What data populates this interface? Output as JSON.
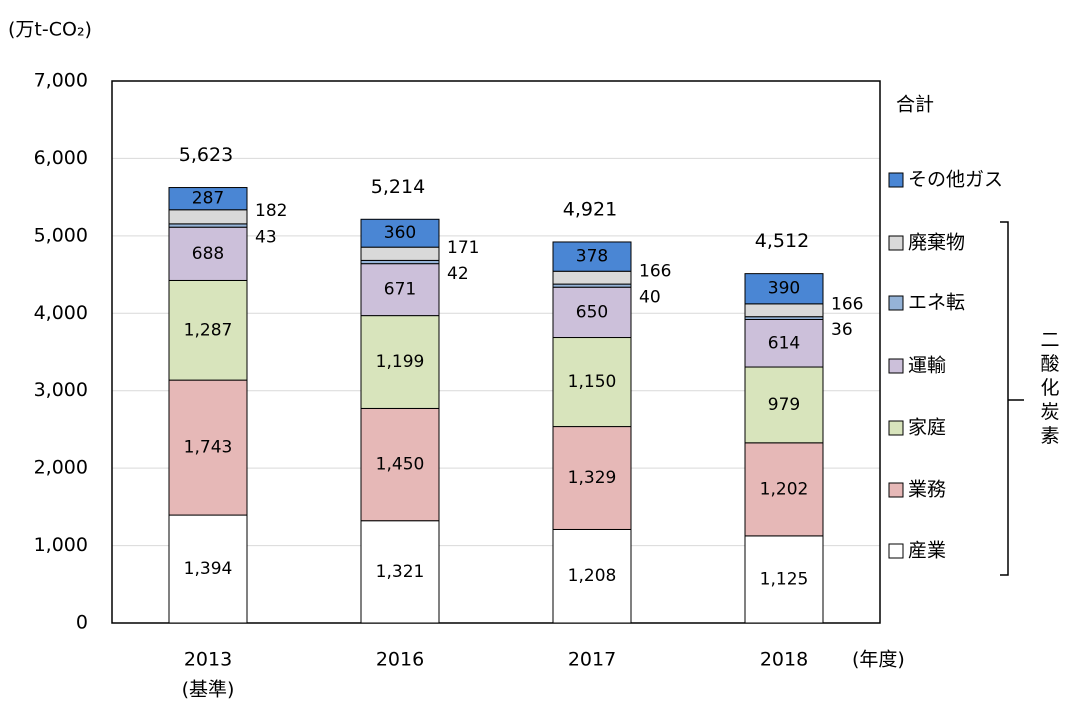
{
  "chart_data": {
    "type": "stacked_bar",
    "y_unit_label": "(万t-CO₂)",
    "x_unit_label": "(年度)",
    "base_year_note": "(基準)",
    "categories": [
      "2013",
      "2016",
      "2017",
      "2018"
    ],
    "ylim": [
      0,
      7000
    ],
    "yticks": [
      0,
      {
        "value": 1000,
        "label": "1,000"
      },
      {
        "value": 2000,
        "label": "2,000"
      },
      {
        "value": 3000,
        "label": "3,000"
      },
      {
        "value": 4000,
        "label": "4,000"
      },
      {
        "value": 5000,
        "label": "5,000"
      },
      {
        "value": 6000,
        "label": "6,000"
      },
      {
        "value": 7000,
        "label": "7,000"
      }
    ],
    "grid": true,
    "series": [
      {
        "name": "産業",
        "color": "#ffffff",
        "values": [
          1394,
          1321,
          1208,
          1125
        ],
        "value_labels": [
          "1,394",
          "1,321",
          "1,208",
          "1,125"
        ]
      },
      {
        "name": "業務",
        "color": "#e6b8b7",
        "values": [
          1743,
          1450,
          1329,
          1202
        ],
        "value_labels": [
          "1,743",
          "1,450",
          "1,329",
          "1,202"
        ]
      },
      {
        "name": "家庭",
        "color": "#d8e4bc",
        "values": [
          1287,
          1199,
          1150,
          979
        ],
        "value_labels": [
          "1,287",
          "1,199",
          "1,150",
          "979"
        ]
      },
      {
        "name": "運輸",
        "color": "#ccc0da",
        "values": [
          688,
          671,
          650,
          614
        ]
      },
      {
        "name": "エネ転",
        "color": "#95b3d7",
        "values": [
          43,
          42,
          40,
          36
        ]
      },
      {
        "name": "廃棄物",
        "color": "#d9d9d9",
        "values": [
          182,
          171,
          166,
          166
        ]
      },
      {
        "name": "その他ガス",
        "color": "#4a86d4",
        "values": [
          287,
          360,
          378,
          390
        ]
      }
    ],
    "totals": {
      "name": "合計",
      "values": [
        5623,
        5214,
        4921,
        4512
      ],
      "value_labels": [
        "5,623",
        "5,214",
        "4,921",
        "4,512"
      ]
    },
    "bracket_label": "二酸化炭素"
  }
}
